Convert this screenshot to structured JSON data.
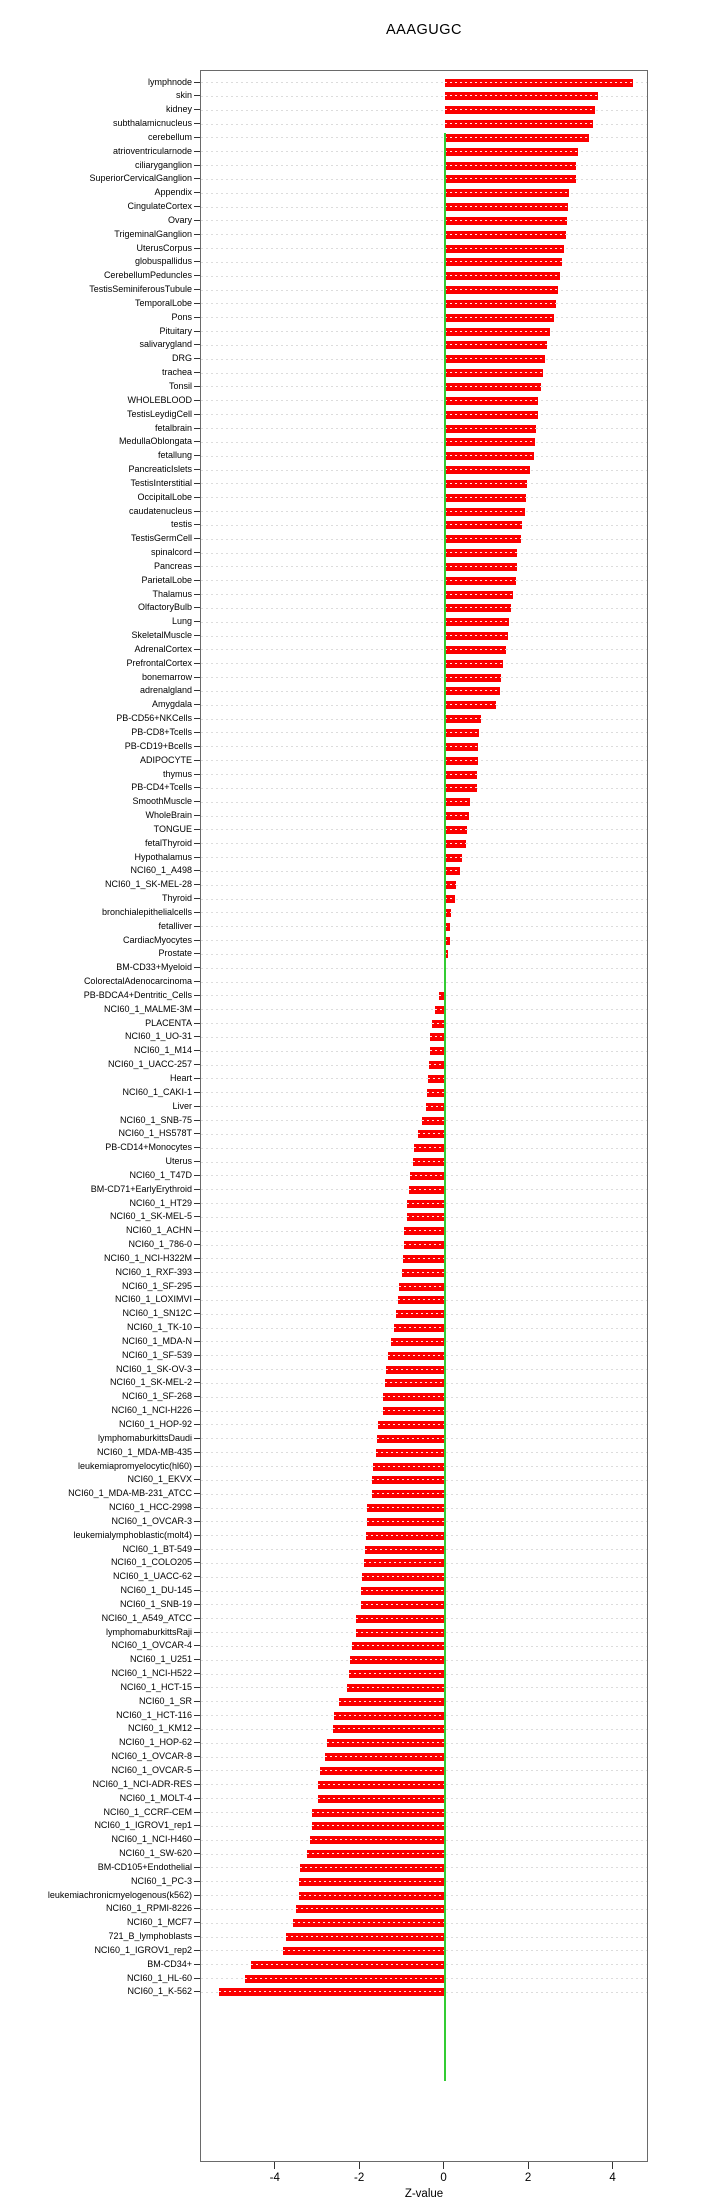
{
  "chart_data": {
    "type": "bar",
    "orientation": "horizontal",
    "title": "AAAGUGC",
    "xlabel": "Z-value",
    "xlim": [
      -5.77,
      4.84
    ],
    "xticks": [
      -4,
      -2,
      0,
      2,
      4
    ],
    "grid": true,
    "legend": "none",
    "bar_color": "#fb0000",
    "zero_line_color": "#33cc33",
    "gridline_color": "#dcdcdc",
    "axis_color": "#333333",
    "box_border_color": "#6a6a6a",
    "categories": [
      "lymphnode",
      "skin",
      "kidney",
      "subthalamicnucleus",
      "cerebellum",
      "atrioventricularnode",
      "ciliaryganglion",
      "SuperiorCervicalGanglion",
      "Appendix",
      "CingulateCortex",
      "Ovary",
      "TrigeminalGanglion",
      "UterusCorpus",
      "globuspallidus",
      "CerebellumPeduncles",
      "TestisSeminiferousTubule",
      "TemporalLobe",
      "Pons",
      "Pituitary",
      "salivarygland",
      "DRG",
      "trachea",
      "Tonsil",
      "WHOLEBLOOD",
      "TestisLeydigCell",
      "fetalbrain",
      "MedullaOblongata",
      "fetallung",
      "PancreaticIslets",
      "TestisInterstitial",
      "OccipitalLobe",
      "caudatenucleus",
      "testis",
      "TestisGermCell",
      "spinalcord",
      "Pancreas",
      "ParietalLobe",
      "Thalamus",
      "OlfactoryBulb",
      "Lung",
      "SkeletalMuscle",
      "AdrenalCortex",
      "PrefrontalCortex",
      "bonemarrow",
      "adrenalgland",
      "Amygdala",
      "PB-CD56+NKCells",
      "PB-CD8+Tcells",
      "PB-CD19+Bcells",
      "ADIPOCYTE",
      "thymus",
      "PB-CD4+Tcells",
      "SmoothMuscle",
      "WholeBrain",
      "TONGUE",
      "fetalThyroid",
      "Hypothalamus",
      "NCI60_1_A498",
      "NCI60_1_SK-MEL-28",
      "Thyroid",
      "bronchialepithelialcells",
      "fetalliver",
      "CardiacMyocytes",
      "Prostate",
      "BM-CD33+Myeloid",
      "ColorectalAdenocarcinoma",
      "PB-BDCA4+Dentritic_Cells",
      "NCI60_1_MALME-3M",
      "PLACENTA",
      "NCI60_1_UO-31",
      "NCI60_1_M14",
      "NCI60_1_UACC-257",
      "Heart",
      "NCI60_1_CAKI-1",
      "Liver",
      "NCI60_1_SNB-75",
      "NCI60_1_HS578T",
      "PB-CD14+Monocytes",
      "Uterus",
      "NCI60_1_T47D",
      "BM-CD71+EarlyErythroid",
      "NCI60_1_HT29",
      "NCI60_1_SK-MEL-5",
      "NCI60_1_ACHN",
      "NCI60_1_786-0",
      "NCI60_1_NCI-H322M",
      "NCI60_1_RXF-393",
      "NCI60_1_SF-295",
      "NCI60_1_LOXIMVI",
      "NCI60_1_SN12C",
      "NCI60_1_TK-10",
      "NCI60_1_MDA-N",
      "NCI60_1_SF-539",
      "NCI60_1_SK-OV-3",
      "NCI60_1_SK-MEL-2",
      "NCI60_1_SF-268",
      "NCI60_1_NCI-H226",
      "NCI60_1_HOP-92",
      "lymphomaburkittsDaudi",
      "NCI60_1_MDA-MB-435",
      "leukemiapromyelocytic(hl60)",
      "NCI60_1_EKVX",
      "NCI60_1_MDA-MB-231_ATCC",
      "NCI60_1_HCC-2998",
      "NCI60_1_OVCAR-3",
      "leukemialymphoblastic(molt4)",
      "NCI60_1_BT-549",
      "NCI60_1_COLO205",
      "NCI60_1_UACC-62",
      "NCI60_1_DU-145",
      "NCI60_1_SNB-19",
      "NCI60_1_A549_ATCC",
      "lymphomaburkittsRaji",
      "NCI60_1_OVCAR-4",
      "NCI60_1_U251",
      "NCI60_1_NCI-H522",
      "NCI60_1_HCT-15",
      "NCI60_1_SR",
      "NCI60_1_HCT-116",
      "NCI60_1_KM12",
      "NCI60_1_HOP-62",
      "NCI60_1_OVCAR-8",
      "NCI60_1_OVCAR-5",
      "NCI60_1_NCI-ADR-RES",
      "NCI60_1_MOLT-4",
      "NCI60_1_CCRF-CEM",
      "NCI60_1_IGROV1_rep1",
      "NCI60_1_NCI-H460",
      "NCI60_1_SW-620",
      "BM-CD105+Endothelial",
      "NCI60_1_PC-3",
      "leukemiachronicmyelogenous(k562)",
      "NCI60_1_RPMI-8226",
      "NCI60_1_MCF7",
      "721_B_lymphoblasts",
      "NCI60_1_IGROV1_rep2",
      "BM-CD34+",
      "NCI60_1_HL-60",
      "NCI60_1_K-562"
    ],
    "values": [
      4.45,
      3.63,
      3.55,
      3.51,
      3.42,
      3.16,
      3.12,
      3.1,
      2.95,
      2.93,
      2.91,
      2.88,
      2.82,
      2.78,
      2.74,
      2.69,
      2.64,
      2.6,
      2.5,
      2.43,
      2.38,
      2.32,
      2.28,
      2.21,
      2.2,
      2.17,
      2.14,
      2.12,
      2.03,
      1.96,
      1.92,
      1.9,
      1.83,
      1.81,
      1.72,
      1.71,
      1.7,
      1.61,
      1.57,
      1.53,
      1.5,
      1.46,
      1.38,
      1.33,
      1.3,
      1.22,
      0.85,
      0.81,
      0.79,
      0.78,
      0.77,
      0.76,
      0.59,
      0.57,
      0.53,
      0.51,
      0.4,
      0.37,
      0.27,
      0.24,
      0.16,
      0.13,
      0.12,
      0.07,
      0.02,
      -0.02,
      -0.14,
      -0.23,
      -0.31,
      -0.34,
      -0.35,
      -0.36,
      -0.4,
      -0.42,
      -0.45,
      -0.54,
      -0.63,
      -0.72,
      -0.74,
      -0.83,
      -0.85,
      -0.89,
      -0.9,
      -0.96,
      -0.97,
      -0.99,
      -1.02,
      -1.07,
      -1.1,
      -1.15,
      -1.19,
      -1.28,
      -1.34,
      -1.4,
      -1.42,
      -1.45,
      -1.47,
      -1.57,
      -1.59,
      -1.62,
      -1.7,
      -1.72,
      -1.73,
      -1.83,
      -1.85,
      -1.86,
      -1.88,
      -1.91,
      -1.96,
      -1.97,
      -1.98,
      -2.09,
      -2.11,
      -2.19,
      -2.24,
      -2.27,
      -2.32,
      -2.49,
      -2.61,
      -2.65,
      -2.78,
      -2.83,
      -2.96,
      -2.99,
      -3.0,
      -3.13,
      -3.15,
      -3.19,
      -3.25,
      -3.42,
      -3.44,
      -3.46,
      -3.51,
      -3.58,
      -3.76,
      -3.83,
      -4.58,
      -4.73,
      -5.35
    ]
  }
}
